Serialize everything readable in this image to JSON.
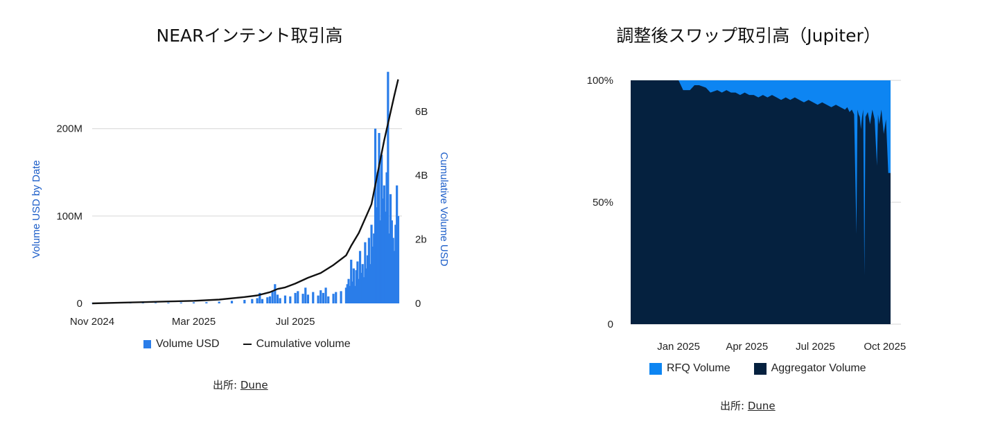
{
  "chart_data": [
    {
      "type": "bar",
      "title": "NEARインテント取引高",
      "ylabel": "Volume USD by Date",
      "y2label": "Cumulative Volume USD",
      "xlabel": "",
      "x_ticks": [
        "Nov 2024",
        "Mar 2025",
        "Jul 2025"
      ],
      "ylim": [
        0,
        260
      ],
      "y_ticks": [
        {
          "value": 0,
          "label": "0"
        },
        {
          "value": 100,
          "label": "100M"
        },
        {
          "value": 200,
          "label": "200M"
        }
      ],
      "y2lim": [
        0,
        7.1
      ],
      "y2_ticks": [
        {
          "value": 0,
          "label": "0"
        },
        {
          "value": 2,
          "label": "2b"
        },
        {
          "value": 4,
          "label": "4B"
        },
        {
          "value": 6,
          "label": "6B"
        }
      ],
      "x_range_months": [
        0,
        12.2
      ],
      "legend": [
        "Volume USD",
        "Cumulative volume"
      ],
      "series": [
        {
          "name": "Volume USD",
          "kind": "bar",
          "color": "#2a7de9",
          "points": [
            [
              0.0,
              0.3
            ],
            [
              0.5,
              0.3
            ],
            [
              1.0,
              0.4
            ],
            [
              1.5,
              0.5
            ],
            [
              2.0,
              0.5
            ],
            [
              2.5,
              0.6
            ],
            [
              3.0,
              0.8
            ],
            [
              3.5,
              1.0
            ],
            [
              4.0,
              1.2
            ],
            [
              4.5,
              1.4
            ],
            [
              5.0,
              2
            ],
            [
              5.5,
              3
            ],
            [
              6.0,
              4
            ],
            [
              6.3,
              5
            ],
            [
              6.5,
              6
            ],
            [
              6.6,
              12
            ],
            [
              6.7,
              5
            ],
            [
              6.9,
              7
            ],
            [
              7.0,
              8
            ],
            [
              7.1,
              14
            ],
            [
              7.2,
              22
            ],
            [
              7.3,
              10
            ],
            [
              7.4,
              6
            ],
            [
              7.6,
              9
            ],
            [
              7.8,
              8
            ],
            [
              8.0,
              12
            ],
            [
              8.1,
              14
            ],
            [
              8.3,
              11
            ],
            [
              8.4,
              18
            ],
            [
              8.5,
              10
            ],
            [
              8.7,
              13
            ],
            [
              8.9,
              9
            ],
            [
              9.0,
              15
            ],
            [
              9.1,
              12
            ],
            [
              9.2,
              18
            ],
            [
              9.3,
              8
            ],
            [
              9.5,
              11
            ],
            [
              9.6,
              13
            ],
            [
              9.8,
              14
            ],
            [
              10.0,
              18
            ],
            [
              10.05,
              22
            ],
            [
              10.1,
              28
            ],
            [
              10.15,
              20
            ],
            [
              10.2,
              50
            ],
            [
              10.25,
              25
            ],
            [
              10.3,
              40
            ],
            [
              10.35,
              20
            ],
            [
              10.4,
              38
            ],
            [
              10.45,
              48
            ],
            [
              10.5,
              28
            ],
            [
              10.55,
              60
            ],
            [
              10.6,
              35
            ],
            [
              10.65,
              45
            ],
            [
              10.7,
              30
            ],
            [
              10.75,
              70
            ],
            [
              10.8,
              40
            ],
            [
              10.85,
              55
            ],
            [
              10.9,
              75
            ],
            [
              10.95,
              45
            ],
            [
              11.0,
              90
            ],
            [
              11.05,
              65
            ],
            [
              11.1,
              80
            ],
            [
              11.15,
              200
            ],
            [
              11.2,
              110
            ],
            [
              11.25,
              150
            ],
            [
              11.3,
              195
            ],
            [
              11.35,
              95
            ],
            [
              11.4,
              170
            ],
            [
              11.45,
              120
            ],
            [
              11.5,
              135
            ],
            [
              11.55,
              105
            ],
            [
              11.6,
              150
            ],
            [
              11.65,
              265
            ],
            [
              11.7,
              80
            ],
            [
              11.75,
              125
            ],
            [
              11.8,
              95
            ],
            [
              11.85,
              75
            ],
            [
              11.9,
              60
            ],
            [
              11.95,
              90
            ],
            [
              12.0,
              135
            ],
            [
              12.05,
              100
            ]
          ]
        },
        {
          "name": "Cumulative volume",
          "kind": "line",
          "axis": "y2",
          "color": "#111111",
          "points": [
            [
              0,
              0
            ],
            [
              1,
              0.02
            ],
            [
              2,
              0.04
            ],
            [
              3,
              0.06
            ],
            [
              4,
              0.08
            ],
            [
              5,
              0.12
            ],
            [
              6,
              0.2
            ],
            [
              6.5,
              0.25
            ],
            [
              7,
              0.35
            ],
            [
              7.3,
              0.45
            ],
            [
              7.6,
              0.5
            ],
            [
              8,
              0.62
            ],
            [
              8.5,
              0.8
            ],
            [
              9,
              0.95
            ],
            [
              9.5,
              1.2
            ],
            [
              10,
              1.5
            ],
            [
              10.2,
              1.8
            ],
            [
              10.5,
              2.2
            ],
            [
              11,
              3.1
            ],
            [
              11.3,
              4.3
            ],
            [
              11.5,
              5.1
            ],
            [
              11.7,
              5.8
            ],
            [
              11.9,
              6.5
            ],
            [
              12.05,
              7.0
            ]
          ]
        }
      ]
    },
    {
      "type": "area",
      "stacking": "percent",
      "title": "調整後スワップ取引高（Jupiter）",
      "x_ticks": [
        "Jan 2025",
        "Apr 2025",
        "Jul 2025",
        "Oct 2025"
      ],
      "y_ticks": [
        {
          "value": 0,
          "label": "0"
        },
        {
          "value": 50,
          "label": "50%"
        },
        {
          "value": 100,
          "label": "100%"
        }
      ],
      "ylim": [
        0,
        100
      ],
      "x_range_months": [
        0,
        11.4
      ],
      "legend": [
        "RFQ Volume",
        "Aggregator Volume"
      ],
      "series": [
        {
          "name": "Aggregator Volume",
          "color": "#05213f",
          "points": [
            [
              0,
              100
            ],
            [
              2.1,
              100
            ],
            [
              2.3,
              96
            ],
            [
              2.6,
              96
            ],
            [
              2.8,
              98
            ],
            [
              3.0,
              98
            ],
            [
              3.3,
              97
            ],
            [
              3.5,
              95
            ],
            [
              3.8,
              96
            ],
            [
              4.0,
              95
            ],
            [
              4.2,
              96
            ],
            [
              4.4,
              95
            ],
            [
              4.6,
              95
            ],
            [
              4.8,
              94
            ],
            [
              5.0,
              95
            ],
            [
              5.2,
              94
            ],
            [
              5.4,
              94
            ],
            [
              5.6,
              93
            ],
            [
              5.8,
              94
            ],
            [
              6.0,
              93
            ],
            [
              6.2,
              94
            ],
            [
              6.4,
              93
            ],
            [
              6.6,
              92
            ],
            [
              6.8,
              93
            ],
            [
              7.0,
              92
            ],
            [
              7.2,
              93
            ],
            [
              7.4,
              92
            ],
            [
              7.6,
              91
            ],
            [
              7.8,
              92
            ],
            [
              8.0,
              91
            ],
            [
              8.2,
              90
            ],
            [
              8.4,
              91
            ],
            [
              8.6,
              90
            ],
            [
              8.8,
              89
            ],
            [
              9.0,
              90
            ],
            [
              9.2,
              89
            ],
            [
              9.4,
              88
            ],
            [
              9.5,
              89
            ],
            [
              9.6,
              87
            ],
            [
              9.7,
              88
            ],
            [
              9.8,
              86
            ],
            [
              9.9,
              37
            ],
            [
              9.95,
              88
            ],
            [
              10.0,
              86
            ],
            [
              10.05,
              85
            ],
            [
              10.1,
              80
            ],
            [
              10.15,
              85
            ],
            [
              10.2,
              88
            ],
            [
              10.25,
              20
            ],
            [
              10.3,
              85
            ],
            [
              10.4,
              87
            ],
            [
              10.5,
              82
            ],
            [
              10.6,
              88
            ],
            [
              10.7,
              84
            ],
            [
              10.8,
              65
            ],
            [
              10.85,
              86
            ],
            [
              10.9,
              82
            ],
            [
              11.0,
              88
            ],
            [
              11.1,
              78
            ],
            [
              11.2,
              84
            ],
            [
              11.3,
              62
            ],
            [
              11.4,
              62
            ]
          ]
        },
        {
          "name": "RFQ Volume",
          "color": "#0d85f2",
          "values_note": "remainder to 100%"
        }
      ]
    }
  ],
  "source": {
    "label": "出所:",
    "link_text": "Dune"
  },
  "colors": {
    "bar": "#2a7de9",
    "rfq": "#0d85f2",
    "aggregator": "#05213f",
    "grid": "#d6d6d6",
    "axis_label": "#1a5cc8"
  }
}
